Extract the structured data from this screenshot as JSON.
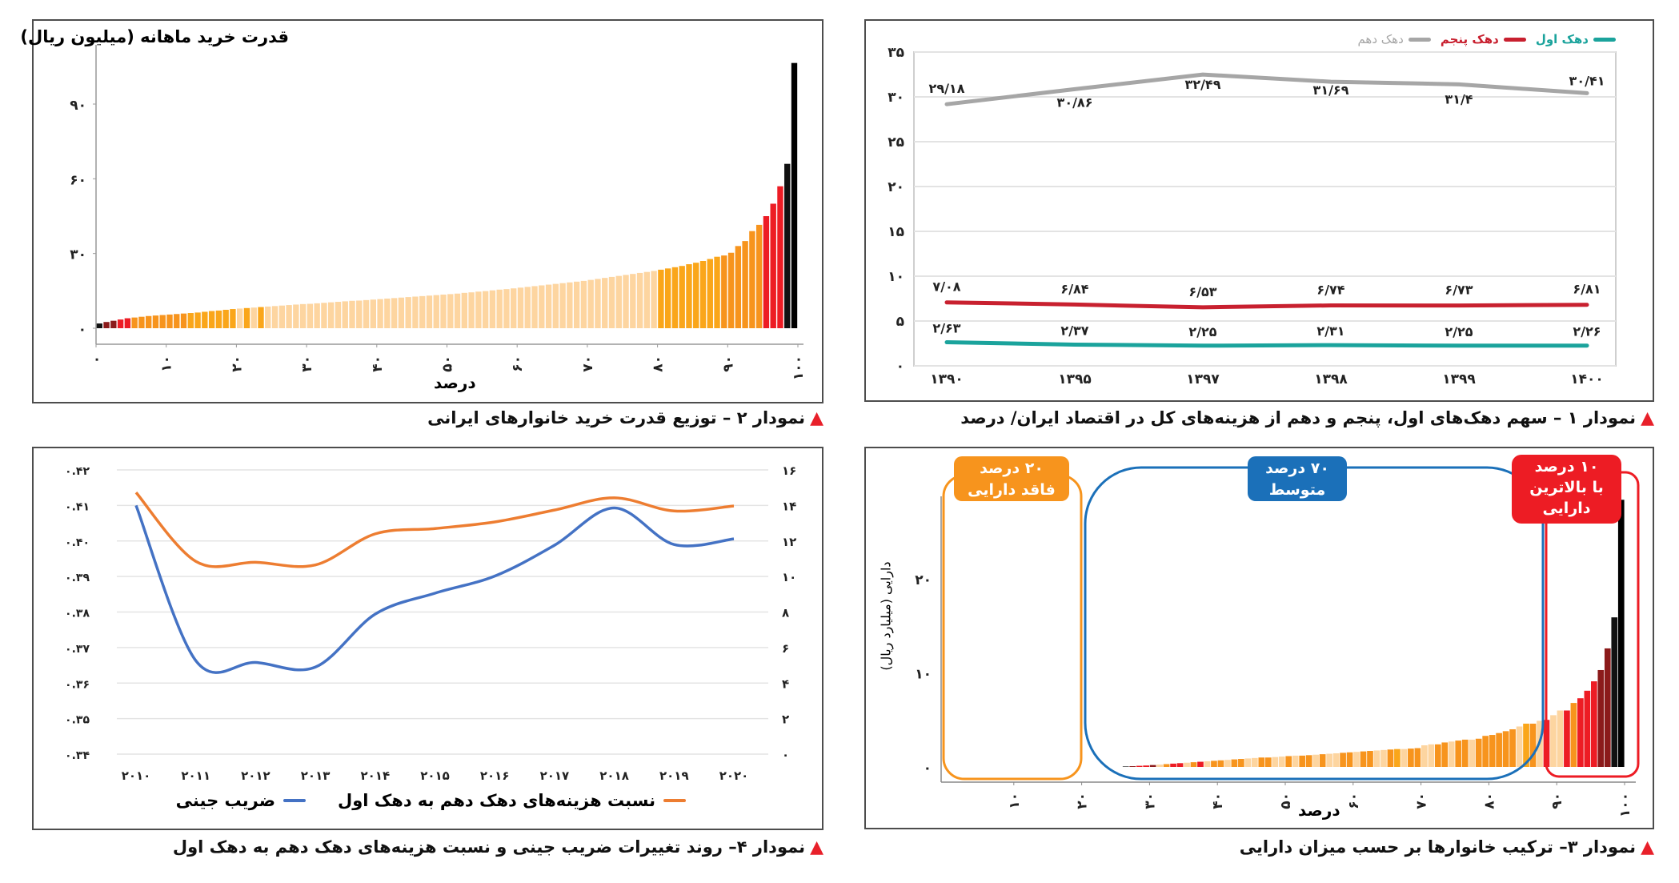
{
  "palette": {
    "K": "#111111",
    "D": "#8b1a1a",
    "R": "#ed1c24",
    "O": "#f7941d",
    "Y": "#faa61a",
    "L": "#fdd5a0"
  },
  "chart_data": [
    {
      "type": "line",
      "caption": "نمودار ۱ – سهم دهک‌های اول، پنجم و دهم از هزینه‌های کل در اقتصاد ایران/ درصد",
      "categories": [
        "۱۳۹۰",
        "۱۳۹۵",
        "۱۳۹۷",
        "۱۳۹۸",
        "۱۳۹۹",
        "۱۴۰۰"
      ],
      "ylim": [
        0,
        35
      ],
      "y_ticks": [
        {
          "v": 0,
          "label": "۰"
        },
        {
          "v": 5,
          "label": "۵"
        },
        {
          "v": 10,
          "label": "۱۰"
        },
        {
          "v": 15,
          "label": "۱۵"
        },
        {
          "v": 20,
          "label": "۲۰"
        },
        {
          "v": 25,
          "label": "۲۵"
        },
        {
          "v": 30,
          "label": "۳۰"
        },
        {
          "v": 35,
          "label": "۳۵"
        }
      ],
      "grid": true,
      "legend": "top-right",
      "series": [
        {
          "name": "دهک اول",
          "color": "#1ba39c",
          "values": [
            2.63,
            2.37,
            2.25,
            2.31,
            2.25,
            2.26
          ],
          "labels": [
            "۲/۶۳",
            "۲/۳۷",
            "۲/۲۵",
            "۲/۳۱",
            "۲/۲۵",
            "۲/۲۶"
          ]
        },
        {
          "name": "دهک پنجم",
          "color": "#c8202f",
          "values": [
            7.08,
            6.84,
            6.53,
            6.74,
            6.73,
            6.81
          ],
          "labels": [
            "۷/۰۸",
            "۶/۸۴",
            "۶/۵۳",
            "۶/۷۴",
            "۶/۷۳",
            "۶/۸۱"
          ]
        },
        {
          "name": "دهک دهم",
          "color": "#a6a6a6",
          "values": [
            29.18,
            30.86,
            32.49,
            31.69,
            31.4,
            30.41
          ],
          "labels": [
            "۲۹/۱۸",
            "۳۰/۸۶",
            "۳۲/۴۹",
            "۳۱/۶۹",
            "۳۱/۴",
            "۳۰/۴۱"
          ]
        }
      ]
    },
    {
      "type": "bar",
      "caption": "نمودار ۲ – توزیع قدرت خرید خانوارهای ایرانی",
      "ylabel": "قدرت خرید ماهانه (میلیون ریال)",
      "xlabel": "درصد",
      "ylim": [
        0,
        110
      ],
      "y_ticks": [
        {
          "v": 0,
          "label": "۰"
        },
        {
          "v": 30,
          "label": "۳۰"
        },
        {
          "v": 60,
          "label": "۶۰"
        },
        {
          "v": 90,
          "label": "۹۰"
        }
      ],
      "x_ticks": [
        {
          "v": 0,
          "label": "۰"
        },
        {
          "v": 10,
          "label": "۱۰"
        },
        {
          "v": 20,
          "label": "۲۰"
        },
        {
          "v": 30,
          "label": "۳۰"
        },
        {
          "v": 40,
          "label": "۴۰"
        },
        {
          "v": 50,
          "label": "۵۰"
        },
        {
          "v": 60,
          "label": "۶۰"
        },
        {
          "v": 70,
          "label": "۷۰"
        },
        {
          "v": 80,
          "label": "۸۰"
        },
        {
          "v": 90,
          "label": "۹۰"
        },
        {
          "v": 100,
          "label": "۱۰۰"
        }
      ],
      "values": [
        1.9,
        2.5,
        3.0,
        3.5,
        4.0,
        4.3,
        4.6,
        4.9,
        5.1,
        5.3,
        5.5,
        5.7,
        5.9,
        6.1,
        6.3,
        6.6,
        6.9,
        7.1,
        7.4,
        7.7,
        7.9,
        8.1,
        8.3,
        8.5,
        8.7,
        8.9,
        9.1,
        9.3,
        9.5,
        9.7,
        9.8,
        10.0,
        10.2,
        10.4,
        10.6,
        10.8,
        11.0,
        11.1,
        11.3,
        11.5,
        11.7,
        11.9,
        12.1,
        12.3,
        12.5,
        12.7,
        12.9,
        13.1,
        13.3,
        13.5,
        13.7,
        13.9,
        14.2,
        14.4,
        14.7,
        14.9,
        15.2,
        15.5,
        15.7,
        16.0,
        16.3,
        16.6,
        16.9,
        17.2,
        17.5,
        17.8,
        18.1,
        18.4,
        18.7,
        19.0,
        19.4,
        19.8,
        20.2,
        20.6,
        21.0,
        21.4,
        21.8,
        22.2,
        22.6,
        23.0,
        23.5,
        24.0,
        24.5,
        25.0,
        25.7,
        26.3,
        27.0,
        27.8,
        28.7,
        29.2,
        30.3,
        33.0,
        35.0,
        39.0,
        41.5,
        45.0,
        50.0,
        57.0,
        66.0,
        106.5
      ],
      "bar_colors": "KDDRROOOOOOOOYYYYYYYLYLYLLLLLLLLLLLLLLLLLLLLLLLLLLLLLLLLLLLLLLLLLLLLLLLLLLLLLLLLYYYYYYYYYOOOOOORRRK"
    },
    {
      "type": "bar",
      "caption": "نمودار ۳– ترکیب خانوارها بر حسب میزان دارایی",
      "ylabel": "دارایی (میلیارد ریال)",
      "xlabel": "درصد",
      "ylim": [
        0,
        30
      ],
      "y_ticks": [
        {
          "v": 0,
          "label": "۰"
        },
        {
          "v": 10,
          "label": "۱۰"
        },
        {
          "v": 20,
          "label": "۲۰"
        }
      ],
      "x_ticks": [
        {
          "v": 10,
          "label": "۱۰"
        },
        {
          "v": 20,
          "label": "۲۰"
        },
        {
          "v": 30,
          "label": "۳۰"
        },
        {
          "v": 40,
          "label": "۴۰"
        },
        {
          "v": 50,
          "label": "۵۰"
        },
        {
          "v": 60,
          "label": "۶۰"
        },
        {
          "v": 70,
          "label": "۷۰"
        },
        {
          "v": 80,
          "label": "۸۰"
        },
        {
          "v": 90,
          "label": "۹۰"
        },
        {
          "v": 100,
          "label": "۱۰۰"
        }
      ],
      "values": [
        0,
        0,
        0,
        0,
        0,
        0,
        0,
        0,
        0,
        0,
        0,
        0,
        0,
        0,
        0,
        0,
        0,
        0,
        0,
        0,
        0,
        0,
        0,
        0,
        0,
        0,
        0.05,
        0.08,
        0.12,
        0.15,
        0.2,
        0.25,
        0.3,
        0.35,
        0.4,
        0.45,
        0.5,
        0.55,
        0.6,
        0.65,
        0.7,
        0.75,
        0.8,
        0.85,
        0.9,
        0.95,
        1.0,
        1.0,
        1.05,
        1.1,
        1.15,
        1.2,
        1.2,
        1.25,
        1.3,
        1.35,
        1.4,
        1.45,
        1.5,
        1.55,
        1.6,
        1.65,
        1.7,
        1.75,
        1.8,
        1.85,
        1.9,
        1.9,
        1.95,
        2.0,
        2.3,
        2.4,
        2.4,
        2.6,
        2.7,
        2.8,
        2.9,
        2.9,
        3.0,
        3.3,
        3.4,
        3.6,
        3.8,
        4.0,
        4.3,
        4.6,
        4.6,
        4.9,
        5.0,
        5.5,
        6.0,
        6.0,
        6.8,
        7.3,
        8.1,
        9.1,
        10.3,
        12.6,
        15.9,
        28.4
      ],
      "bar_colors": "--------------------------KDRRDLORRLORLOOLOOLLOOLLOLOOLOLLOOLOOLLOYLOOLLOOLOOLOOOOOOLYOLRLLRORRRDDK",
      "groups": [
        {
          "lines": [
            "۲۰ درصد",
            "فاقد دارایی"
          ],
          "color": "#f7941d",
          "range": [
            0,
            20
          ]
        },
        {
          "lines": [
            "۷۰ درصد",
            "متوسط"
          ],
          "color": "#1b70b9",
          "range": [
            20,
            90
          ]
        },
        {
          "lines": [
            "۱۰ درصد",
            "با بالاترین",
            "دارایی"
          ],
          "color": "#ed1c24",
          "range": [
            90,
            100
          ]
        }
      ]
    },
    {
      "type": "line",
      "caption": "نمودار ۴– روند تغییرات ضریب جینی و نسبت هزینه‌های دهک دهم به دهک اول",
      "categories": [
        "۲۰۱۰",
        "۲۰۱۱",
        "۲۰۱۲",
        "۲۰۱۳",
        "۲۰۱۴",
        "۲۰۱۵",
        "۲۰۱۶",
        "۲۰۱۷",
        "۲۰۱۸",
        "۲۰۱۹",
        "۲۰۲۰"
      ],
      "ylim_left": [
        0.34,
        0.42
      ],
      "ylim_right": [
        0,
        16
      ],
      "y_ticks_left": [
        {
          "v": 0.34,
          "label": "۰.۳۴"
        },
        {
          "v": 0.35,
          "label": "۰.۳۵"
        },
        {
          "v": 0.36,
          "label": "۰.۳۶"
        },
        {
          "v": 0.37,
          "label": "۰.۳۷"
        },
        {
          "v": 0.38,
          "label": "۰.۳۸"
        },
        {
          "v": 0.39,
          "label": "۰.۳۹"
        },
        {
          "v": 0.4,
          "label": "۰.۴۰"
        },
        {
          "v": 0.41,
          "label": "۰.۴۱"
        },
        {
          "v": 0.42,
          "label": "۰.۴۲"
        }
      ],
      "y_ticks_right": [
        {
          "v": 0,
          "label": "۰"
        },
        {
          "v": 2,
          "label": "۲"
        },
        {
          "v": 4,
          "label": "۴"
        },
        {
          "v": 6,
          "label": "۶"
        },
        {
          "v": 8,
          "label": "۸"
        },
        {
          "v": 10,
          "label": "۱۰"
        },
        {
          "v": 12,
          "label": "۱۲"
        },
        {
          "v": 14,
          "label": "۱۴"
        },
        {
          "v": 16,
          "label": "۱۶"
        }
      ],
      "grid": true,
      "legend": "bottom",
      "series": [
        {
          "name": "ضریب جینی",
          "axis": "left",
          "color": "#4472c4",
          "values": [
            0.41,
            0.3663,
            0.3658,
            0.3645,
            0.3794,
            0.3853,
            0.3901,
            0.3988,
            0.4093,
            0.399,
            0.4006
          ]
        },
        {
          "name": "نسبت هزینه‌های دهک دهم به دهک اول",
          "axis": "right",
          "color": "#ed7d31",
          "values": [
            14.73,
            10.85,
            10.8,
            10.65,
            12.4,
            12.7,
            13.07,
            13.74,
            14.43,
            13.69,
            13.97
          ]
        }
      ]
    }
  ]
}
